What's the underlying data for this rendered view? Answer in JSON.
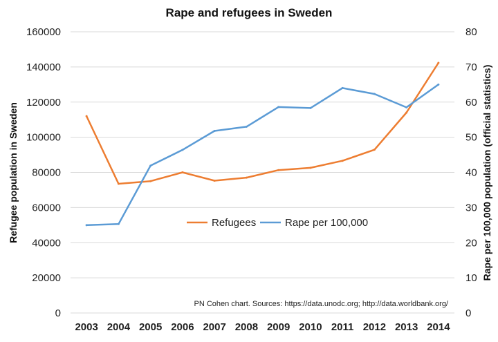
{
  "chart_data": {
    "type": "line",
    "title": "Rape and refugees in Sweden",
    "ylabel": "Refugee population in Sweden",
    "y2label": "Rape per 100,000 population (official statistics)",
    "xlabel": "",
    "source_note": "PN Cohen chart. Sources: https://data.unodc.org; http://data.worldbank.org/",
    "categories": [
      "2003",
      "2004",
      "2005",
      "2006",
      "2007",
      "2008",
      "2009",
      "2010",
      "2011",
      "2012",
      "2013",
      "2014"
    ],
    "ylim": [
      0,
      160000
    ],
    "y2lim": [
      0,
      80
    ],
    "y_ticks": [
      "0",
      "20000",
      "40000",
      "60000",
      "80000",
      "100000",
      "120000",
      "140000",
      "160000"
    ],
    "y2_ticks": [
      "0",
      "10",
      "20",
      "30",
      "40",
      "50",
      "60",
      "70",
      "80"
    ],
    "grid": true,
    "legend_position": "center",
    "series": [
      {
        "name": "Refugees",
        "axis": "left",
        "color": "#ed7d31",
        "values": [
          112000,
          73500,
          75000,
          80000,
          75300,
          77000,
          81300,
          82600,
          86600,
          92900,
          114000,
          142300
        ]
      },
      {
        "name": "Rape per 100,000",
        "axis": "right",
        "color": "#5b9bd5",
        "values": [
          25.0,
          25.3,
          41.9,
          46.4,
          51.8,
          53.0,
          58.6,
          58.3,
          64.0,
          62.3,
          58.5,
          65.0
        ]
      }
    ]
  }
}
